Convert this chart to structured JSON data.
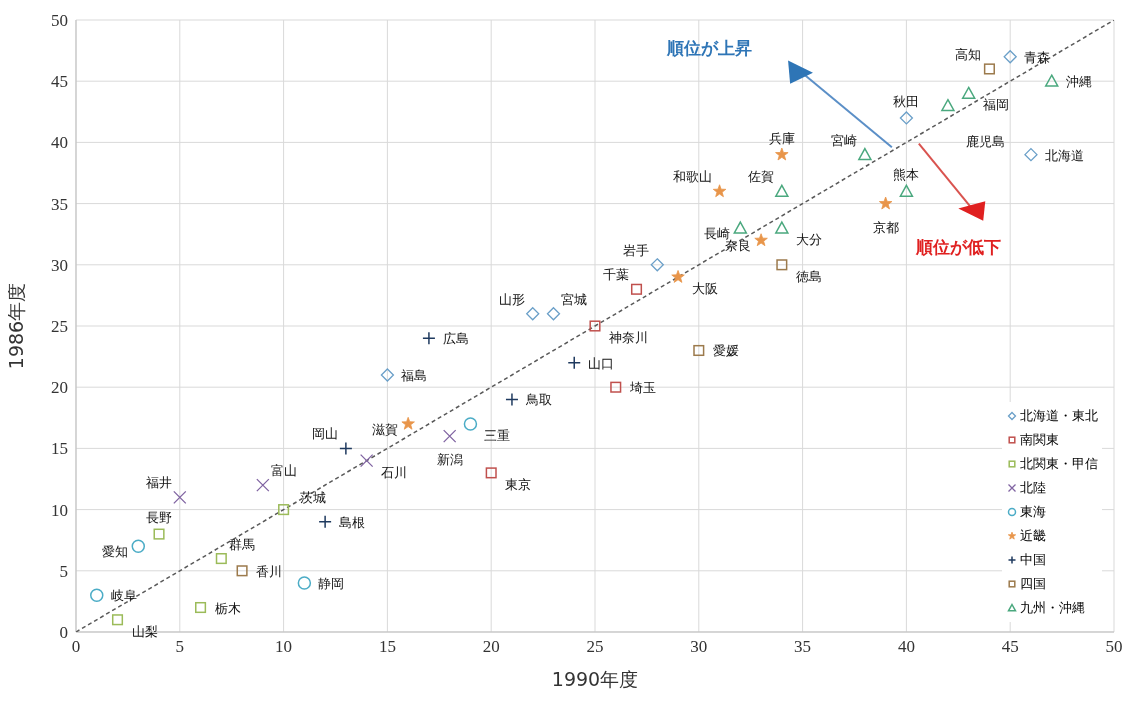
{
  "chart_data": {
    "type": "scatter",
    "xlabel": "1990年度",
    "ylabel": "1986年度",
    "xlim": [
      0,
      50
    ],
    "ylim": [
      0,
      50
    ],
    "xticks": [
      0,
      5,
      10,
      15,
      20,
      25,
      30,
      35,
      40,
      45,
      50
    ],
    "yticks": [
      0,
      5,
      10,
      15,
      20,
      25,
      30,
      35,
      40,
      45,
      50
    ],
    "grid": true,
    "legend": "bottom right",
    "annotations": [
      "順位が上昇",
      "順位が低下"
    ],
    "series": [
      {
        "type": "line",
        "color": "#595959",
        "line_style": "dashed",
        "marker": "none",
        "x": [
          0,
          50
        ],
        "values": [
          0,
          50
        ]
      },
      {
        "name": "北海道・東北",
        "color": "#6a9fc8",
        "marker": "diamond",
        "x": [
          45,
          40,
          46,
          28,
          22,
          23,
          15
        ],
        "values": [
          47,
          42,
          39,
          30,
          26,
          26,
          21
        ],
        "value_labels": [
          "青森",
          "秋田",
          "北海道",
          "岩手",
          "山形",
          "宮城",
          "福島"
        ]
      },
      {
        "name": "南関東",
        "color": "#c0504d",
        "marker": "square",
        "x": [
          27,
          25,
          26,
          20
        ],
        "values": [
          28,
          25,
          20,
          13
        ],
        "value_labels": [
          "千葉",
          "神奈川",
          "埼玉",
          "東京"
        ]
      },
      {
        "name": "北関東・甲信",
        "color": "#9bbb59",
        "marker": "square",
        "x": [
          4,
          7,
          10,
          6,
          2
        ],
        "values": [
          8,
          6,
          10,
          2,
          1
        ],
        "value_labels": [
          "長野",
          "群馬",
          "茨城",
          "栃木",
          "山梨"
        ]
      },
      {
        "name": "北陸",
        "color": "#8064a2",
        "marker": "cross",
        "x": [
          5,
          9,
          14,
          18
        ],
        "values": [
          11,
          12,
          14,
          16
        ],
        "value_labels": [
          "福井",
          "富山",
          "石川",
          "新潟"
        ]
      },
      {
        "name": "東海",
        "color": "#4bacc6",
        "marker": "circle",
        "x": [
          3,
          1,
          11,
          19
        ],
        "values": [
          7,
          3,
          4,
          17
        ],
        "value_labels": [
          "愛知",
          "岐阜",
          "静岡",
          "三重"
        ]
      },
      {
        "name": "近畿",
        "color": "#e8954a",
        "marker": "star",
        "x": [
          16,
          31,
          34,
          29,
          33,
          39
        ],
        "values": [
          17,
          36,
          39,
          29,
          32,
          35
        ],
        "value_labels": [
          "滋賀",
          "和歌山",
          "兵庫",
          "大阪",
          "奈良",
          "京都"
        ]
      },
      {
        "name": "中国",
        "color": "#1f3a5f",
        "marker": "plus",
        "x": [
          13,
          12,
          21,
          24,
          17
        ],
        "values": [
          15,
          9,
          19,
          22,
          24
        ],
        "value_labels": [
          "岡山",
          "島根",
          "鳥取",
          "山口",
          "広島"
        ]
      },
      {
        "name": "四国",
        "color": "#9c7a4c",
        "marker": "square",
        "x": [
          44,
          34,
          30,
          8
        ],
        "values": [
          46,
          30,
          23,
          5
        ],
        "value_labels": [
          "高知",
          "徳島",
          "愛媛",
          "香川"
        ]
      },
      {
        "name": "九州・沖縄",
        "color": "#4aa87e",
        "marker": "triangle",
        "x": [
          47,
          43,
          42,
          38,
          40,
          34,
          32,
          34
        ],
        "values": [
          45,
          44,
          43,
          39,
          36,
          36,
          33,
          33
        ],
        "value_labels": [
          "沖縄",
          "福岡",
          "鹿児島",
          "宮崎",
          "熊本",
          "佐賀",
          "長崎",
          "大分"
        ]
      }
    ]
  }
}
